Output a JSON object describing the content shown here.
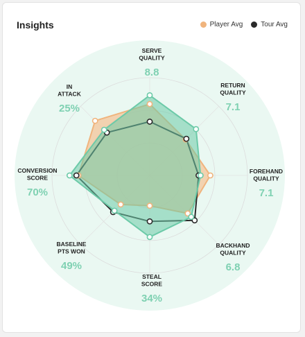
{
  "card": {
    "title": "Insights"
  },
  "legend": {
    "player_label": "Player Avg",
    "tour_label": "Tour Avg"
  },
  "colors": {
    "player": "#f0b47d",
    "tour": "#2a2a2a",
    "player_fill": "#f4c59a",
    "highlight": "#6ccaa8",
    "highlight_fill": "#6ccaa8",
    "background_disc": "#eaf8f2",
    "value_text": "#7fd1b2"
  },
  "chart_data": {
    "type": "radar",
    "axes": [
      {
        "name_lines": [
          "SERVE",
          "QUALITY"
        ],
        "value_label": "8.8"
      },
      {
        "name_lines": [
          "RETURN",
          "QUALITY"
        ],
        "value_label": "7.1"
      },
      {
        "name_lines": [
          "FOREHAND",
          "QUALITY"
        ],
        "value_label": "7.1"
      },
      {
        "name_lines": [
          "BACKHAND",
          "QUALITY"
        ],
        "value_label": "6.8"
      },
      {
        "name_lines": [
          "STEAL",
          "SCORE"
        ],
        "value_label": "34%"
      },
      {
        "name_lines": [
          "BASELINE",
          "PTS WON"
        ],
        "value_label": "49%"
      },
      {
        "name_lines": [
          "CONVERSION",
          "SCORE"
        ],
        "value_label": "70%"
      },
      {
        "name_lines": [
          "IN",
          "ATTACK"
        ],
        "value_label": "25%"
      }
    ],
    "scale_max": 1.0,
    "grid_rings": 3,
    "series": [
      {
        "name": "Player Avg",
        "values": [
          0.73,
          0.52,
          0.62,
          0.55,
          0.31,
          0.42,
          0.73,
          0.79
        ]
      },
      {
        "name": "Tour Avg",
        "values": [
          0.55,
          0.53,
          0.5,
          0.65,
          0.47,
          0.53,
          0.75,
          0.62
        ]
      },
      {
        "name": "",
        "values": [
          0.82,
          0.67,
          0.52,
          0.6,
          0.63,
          0.51,
          0.82,
          0.66
        ]
      }
    ]
  }
}
